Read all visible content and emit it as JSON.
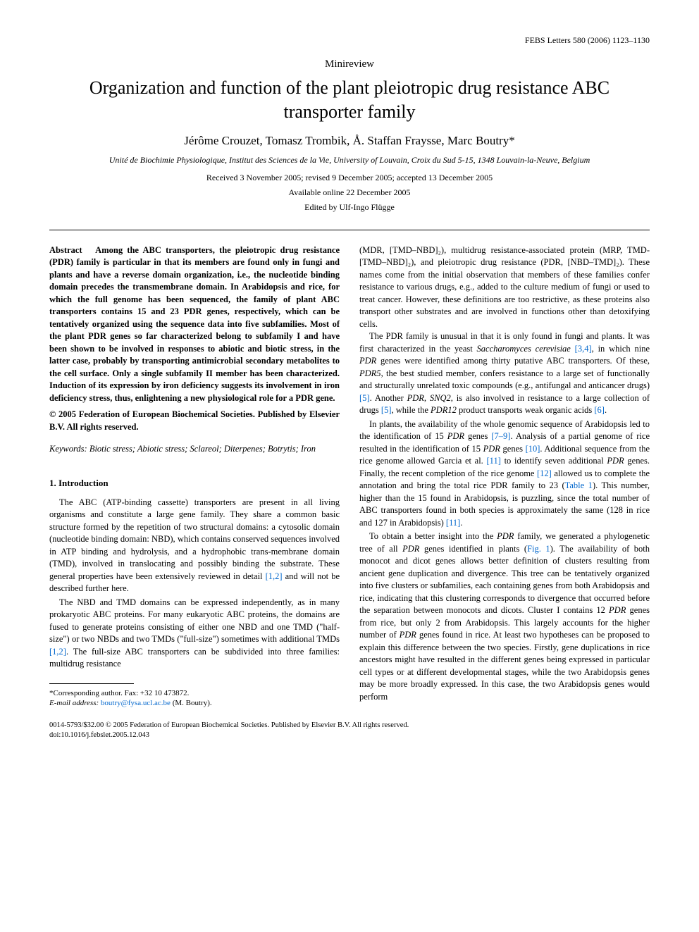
{
  "header": {
    "journal_line": "FEBS Letters 580 (2006) 1123–1130"
  },
  "article_type": "Minireview",
  "title": "Organization and function of the plant pleiotropic drug resistance ABC transporter family",
  "authors": "Jérôme Crouzet, Tomasz Trombik, Å. Staffan Fraysse, Marc Boutry*",
  "affiliation": "Unité de Biochimie Physiologique, Institut des Sciences de la Vie, University of Louvain, Croix du Sud 5-15, 1348 Louvain-la-Neuve, Belgium",
  "dates": {
    "received": "Received 3 November 2005; revised 9 December 2005; accepted 13 December 2005",
    "online": "Available online 22 December 2005"
  },
  "edited_by": "Edited by Ulf-Ingo Flügge",
  "abstract": {
    "label": "Abstract",
    "text": "Among the ABC transporters, the pleiotropic drug resistance (PDR) family is particular in that its members are found only in fungi and plants and have a reverse domain organization, i.e., the nucleotide binding domain precedes the transmembrane domain. In Arabidopsis and rice, for which the full genome has been sequenced, the family of plant ABC transporters contains 15 and 23 PDR genes, respectively, which can be tentatively organized using the sequence data into five subfamilies. Most of the plant PDR genes so far characterized belong to subfamily I and have been shown to be involved in responses to abiotic and biotic stress, in the latter case, probably by transporting antimicrobial secondary metabolites to the cell surface. Only a single subfamily II member has been characterized. Induction of its expression by iron deficiency suggests its involvement in iron deficiency stress, thus, enlightening a new physiological role for a PDR gene.",
    "copyright": "© 2005 Federation of European Biochemical Societies. Published by Elsevier B.V. All rights reserved."
  },
  "keywords": {
    "label": "Keywords:",
    "text": "Biotic stress; Abiotic stress; Sclareol; Diterpenes; Botrytis; Iron"
  },
  "section1": {
    "heading": "1. Introduction",
    "p1_a": "The ABC (ATP-binding cassette) transporters are present in all living organisms and constitute a large gene family. They share a common basic structure formed by the repetition of two structural domains: a cytosolic domain (nucleotide binding domain: NBD), which contains conserved sequences involved in ATP binding and hydrolysis, and a hydrophobic trans-membrane domain (TMD), involved in translocating and possibly binding the substrate. These general properties have been extensively reviewed in detail ",
    "p1_ref1": "[1,2]",
    "p1_b": " and will not be described further here.",
    "p2_a": "The NBD and TMD domains can be expressed independently, as in many prokaryotic ABC proteins. For many eukaryotic ABC proteins, the domains are fused to generate proteins consisting of either one NBD and one TMD (\"half-size\") or two NBDs and two TMDs (\"full-size\") sometimes with additional TMDs ",
    "p2_ref1": "[1,2]",
    "p2_b": ". The full-size ABC transporters can be subdivided into three families: multidrug resistance"
  },
  "rightcol": {
    "p1_a": "(MDR, [TMD–NBD]₂), multidrug resistance-associated protein (MRP, TMD-[TMD–NBD]₂), and pleiotropic drug resistance (PDR, [NBD–TMD]₂). These names come from the initial observation that members of these families confer resistance to various drugs, e.g., added to the culture medium of fungi or used to treat cancer. However, these definitions are too restrictive, as these proteins also transport other substrates and are involved in functions other than detoxifying cells.",
    "p2_a": "The PDR family is unusual in that it is only found in fungi and plants. It was first characterized in the yeast ",
    "p2_ital1": "Saccharomyces cerevisiae",
    "p2_b": " ",
    "p2_ref1": "[3,4]",
    "p2_c": ", in which nine ",
    "p2_ital2": "PDR",
    "p2_d": " genes were identified among thirty putative ABC transporters. Of these, ",
    "p2_ital3": "PDR5",
    "p2_e": ", the best studied member, confers resistance to a large set of functionally and structurally unrelated toxic compounds (e.g., antifungal and anticancer drugs) ",
    "p2_ref2": "[5]",
    "p2_f": ". Another ",
    "p2_ital4": "PDR",
    "p2_g": ", ",
    "p2_ital5": "SNQ2",
    "p2_h": ", is also involved in resistance to a large collection of drugs ",
    "p2_ref3": "[5]",
    "p2_i": ", while the ",
    "p2_ital6": "PDR12",
    "p2_j": " product transports weak organic acids ",
    "p2_ref4": "[6]",
    "p2_k": ".",
    "p3_a": "In plants, the availability of the whole genomic sequence of Arabidopsis led to the identification of 15 ",
    "p3_ital1": "PDR",
    "p3_b": " genes ",
    "p3_ref1": "[7–9]",
    "p3_c": ". Analysis of a partial genome of rice resulted in the identification of 15 ",
    "p3_ital2": "PDR",
    "p3_d": " genes ",
    "p3_ref2": "[10]",
    "p3_e": ". Additional sequence from the rice genome allowed Garcia et al. ",
    "p3_ref3": "[11]",
    "p3_f": " to identify seven additional ",
    "p3_ital3": "PDR",
    "p3_g": " genes. Finally, the recent completion of the rice genome ",
    "p3_ref4": "[12]",
    "p3_h": " allowed us to complete the annotation and bring the total rice PDR family to 23 (",
    "p3_ref5": "Table 1",
    "p3_i": "). This number, higher than the 15 found in Arabidopsis, is puzzling, since the total number of ABC transporters found in both species is approximately the same (128 in rice and 127 in Arabidopsis) ",
    "p3_ref6": "[11]",
    "p3_j": ".",
    "p4_a": "To obtain a better insight into the ",
    "p4_ital1": "PDR",
    "p4_b": " family, we generated a phylogenetic tree of all ",
    "p4_ital2": "PDR",
    "p4_c": " genes identified in plants (",
    "p4_ref1": "Fig. 1",
    "p4_d": "). The availability of both monocot and dicot genes allows better definition of clusters resulting from ancient gene duplication and divergence. This tree can be tentatively organized into five clusters or subfamilies, each containing genes from both Arabidopsis and rice, indicating that this clustering corresponds to divergence that occurred before the separation between monocots and dicots. Cluster I contains 12 ",
    "p4_ital3": "PDR",
    "p4_e": " genes from rice, but only 2 from Arabidopsis. This largely accounts for the higher number of ",
    "p4_ital4": "PDR",
    "p4_f": " genes found in rice. At least two hypotheses can be proposed to explain this difference between the two species. Firstly, gene duplications in rice ancestors might have resulted in the different genes being expressed in particular cell types or at different developmental stages, while the two Arabidopsis genes may be more broadly expressed. In this case, the two Arabidopsis genes would perform"
  },
  "footnote": {
    "corresponding": "*Corresponding author. Fax: +32 10 473872.",
    "email_label": "E-mail address:",
    "email": "boutry@fysa.ucl.ac.be",
    "email_name": "(M. Boutry)."
  },
  "bottom": {
    "line1": "0014-5793/$32.00 © 2005 Federation of European Biochemical Societies. Published by Elsevier B.V. All rights reserved.",
    "line2": "doi:10.1016/j.febslet.2005.12.043"
  },
  "colors": {
    "text": "#000000",
    "link": "#0066cc",
    "background": "#ffffff"
  },
  "typography": {
    "body_fontsize": 12.5,
    "title_fontsize": 26,
    "authors_fontsize": 17,
    "small_fontsize": 12,
    "footnote_fontsize": 11,
    "bottom_fontsize": 10.5
  }
}
